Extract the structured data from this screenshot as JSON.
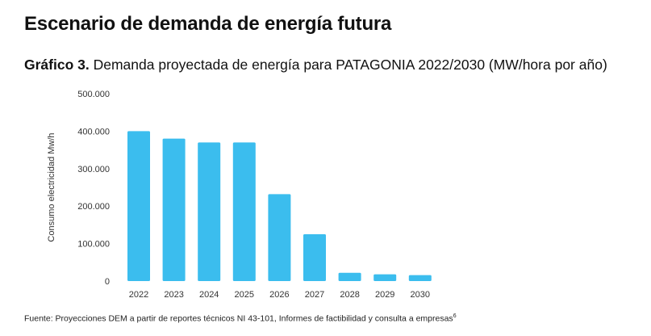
{
  "section_title": "Escenario de demanda de energía futura",
  "chart_heading": {
    "label": "Gráfico 3.",
    "text": "Demanda proyectada de energía para PATAGONIA  2022/2030 (MW/hora por año)"
  },
  "footnote": {
    "text": "Fuente: Proyecciones DEM a partir de reportes técnicos NI 43-101, Informes de factibilidad y consulta a empresas",
    "ref": "6"
  },
  "colors": {
    "bar": "#3bbdee",
    "text": "#111111",
    "tick": "#333333"
  },
  "chart_data": {
    "type": "bar",
    "categories": [
      "2022",
      "2023",
      "2024",
      "2025",
      "2026",
      "2027",
      "2028",
      "2029",
      "2030"
    ],
    "values": [
      400000,
      380000,
      370000,
      370000,
      232000,
      125000,
      22000,
      18000,
      16000
    ],
    "ylabel": "Consumo electricidad Mw/h",
    "xlabel": "",
    "ylim": [
      0,
      500000
    ],
    "yticks": [
      0,
      100000,
      200000,
      300000,
      400000,
      500000
    ],
    "ytick_labels": [
      "0",
      "100.000",
      "200.000",
      "300.000",
      "400.000",
      "500.000"
    ],
    "grid": false,
    "legend": false
  }
}
